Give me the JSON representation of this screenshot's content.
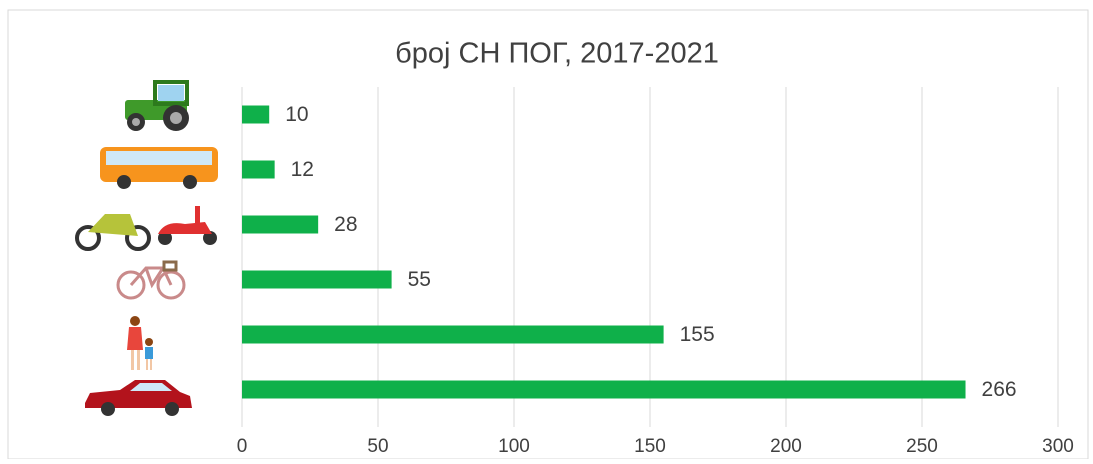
{
  "chart_data": {
    "type": "bar",
    "orientation": "horizontal",
    "title": "број СН ПОГ, 2017-2021",
    "categories": [
      null,
      null,
      null,
      null,
      null,
      null
    ],
    "values": [
      10,
      12,
      28,
      55,
      155,
      266
    ],
    "color": "#0fb04a",
    "xlim": [
      0,
      300
    ],
    "xticks": [
      0,
      50,
      100,
      150,
      200,
      250,
      300
    ],
    "grid": true
  }
}
